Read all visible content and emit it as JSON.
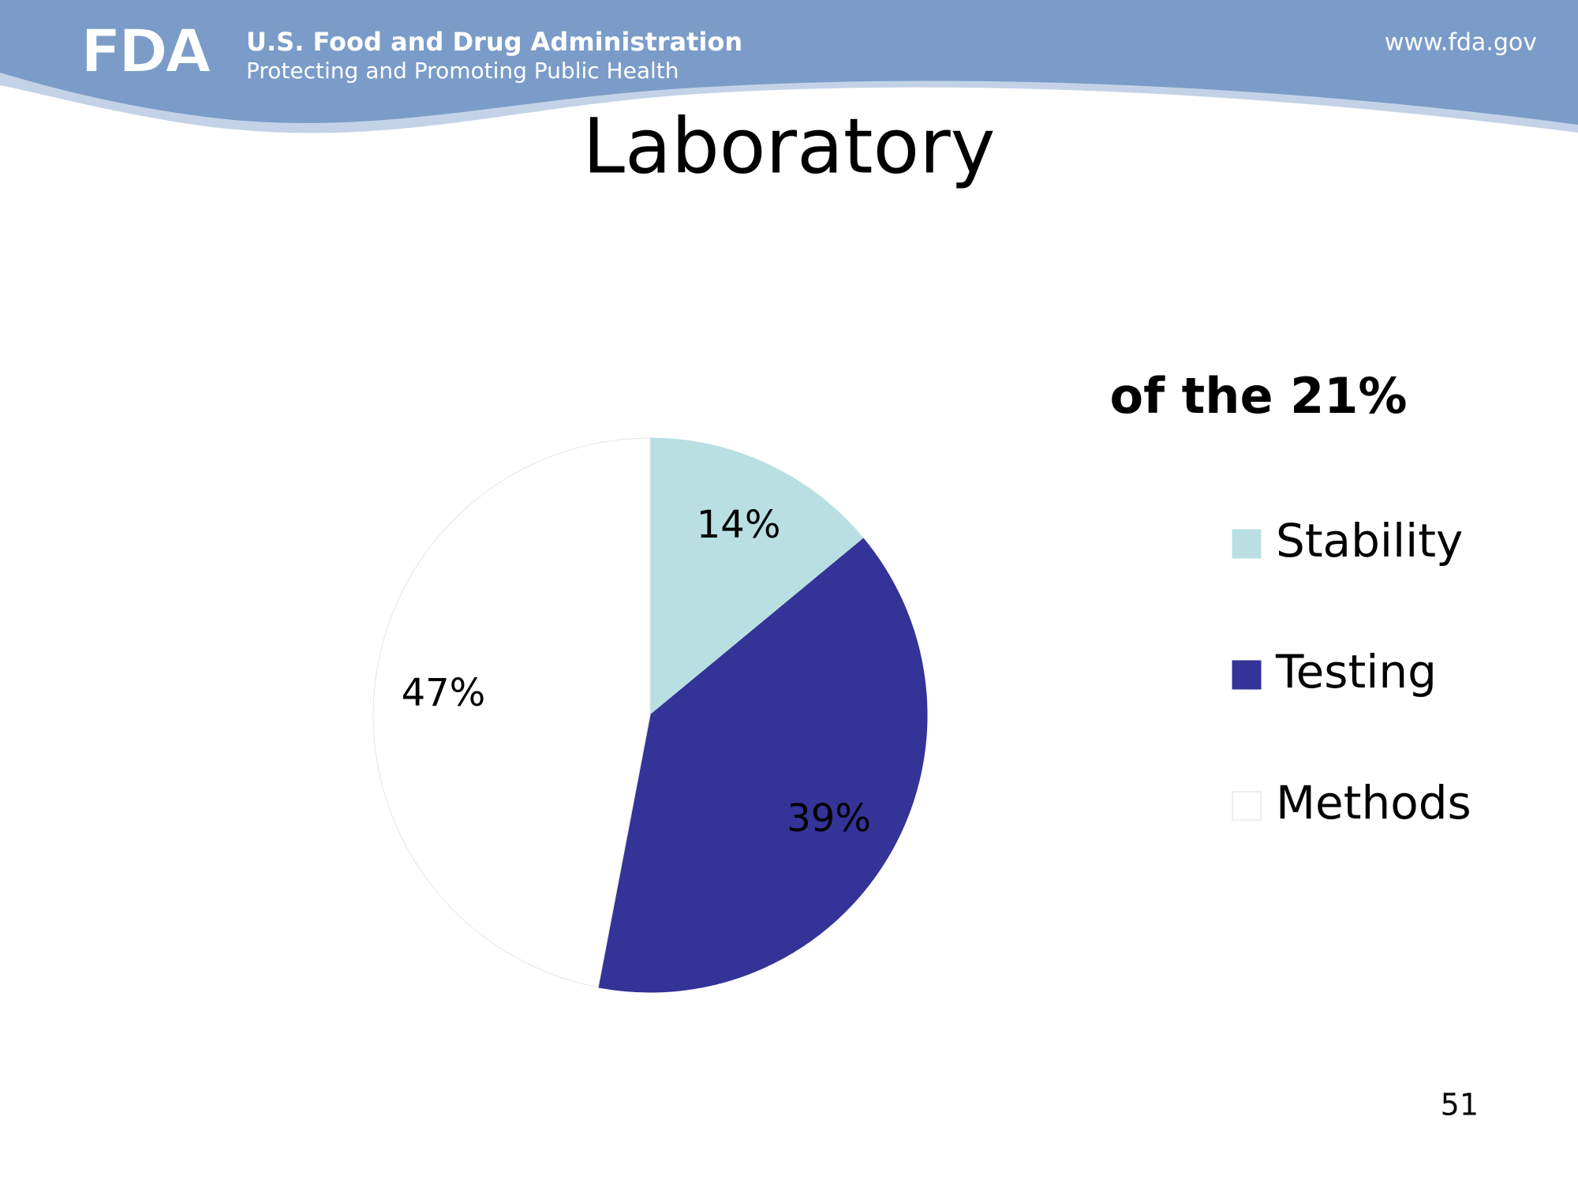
{
  "header": {
    "logo": "FDA",
    "agency": "U.S. Food and Drug Administration",
    "tagline": "Protecting and Promoting Public Health",
    "url": "www.fda.gov"
  },
  "slide": {
    "title": "Laboratory",
    "page_number": "51"
  },
  "chart_data": {
    "type": "pie",
    "title": "of the 21%",
    "categories": [
      "Stability",
      "Testing",
      "Methods"
    ],
    "values": [
      14,
      39,
      47
    ],
    "value_labels": [
      "14%",
      "39%",
      "47%"
    ],
    "colors": [
      "#b9dfe3",
      "#343398",
      "#ffffff"
    ]
  }
}
